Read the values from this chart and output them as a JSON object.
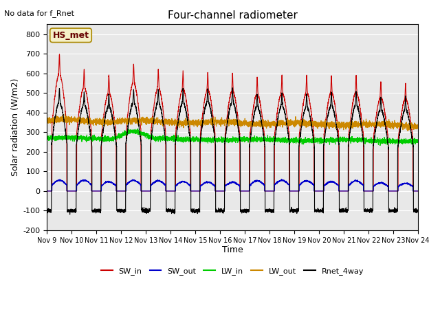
{
  "title": "Four-channel radiometer",
  "top_left_text": "No data for f_Rnet",
  "ylabel": "Solar radiation (W/m2)",
  "xlabel": "Time",
  "legend_label": "HS_met",
  "ylim": [
    -200,
    850
  ],
  "yticks": [
    -200,
    -100,
    0,
    100,
    200,
    300,
    400,
    500,
    600,
    700,
    800
  ],
  "xtick_labels": [
    "Nov 9",
    "Nov 10",
    "Nov 11",
    "Nov 12",
    "Nov 13",
    "Nov 14",
    "Nov 15",
    "Nov 16",
    "Nov 17",
    "Nov 18",
    "Nov 19",
    "Nov 20",
    "Nov 21",
    "Nov 22",
    "Nov 23",
    "Nov 24"
  ],
  "n_days": 15,
  "background_color": "#e8e8e8",
  "colors": {
    "SW_in": "#cc0000",
    "SW_out": "#0000cc",
    "LW_in": "#00cc00",
    "LW_out": "#cc8800",
    "Rnet_4way": "#000000"
  },
  "legend_entries": [
    "SW_in",
    "SW_out",
    "LW_in",
    "LW_out",
    "Rnet_4way"
  ],
  "legend_colors": [
    "#cc0000",
    "#0000cc",
    "#00cc00",
    "#cc8800",
    "#000000"
  ]
}
